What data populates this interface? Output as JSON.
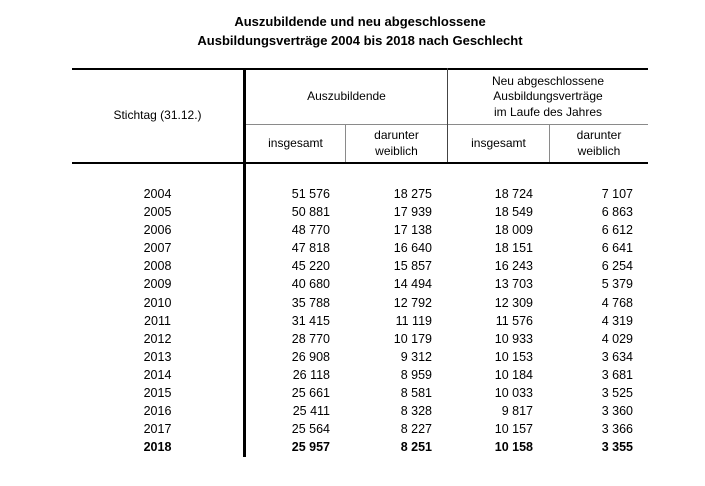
{
  "title": {
    "line1": "Auszubildende und neu abgeschlossene",
    "line2": "Ausbildungsverträge 2004 bis 2018 nach Geschlecht"
  },
  "table": {
    "corner_header": "Stichtag (31.12.)",
    "group1": {
      "label": "Auszubildende"
    },
    "group2": {
      "lines": [
        "Neu abgeschlossene",
        "Ausbildungsverträge",
        "im Laufe des Jahres"
      ]
    },
    "subheaders": [
      {
        "lines": [
          "insgesamt"
        ]
      },
      {
        "lines": [
          "darunter",
          "weiblich"
        ]
      },
      {
        "lines": [
          "insgesamt"
        ]
      },
      {
        "lines": [
          "darunter",
          "weiblich"
        ]
      }
    ],
    "rows": [
      {
        "year": "2004",
        "values": [
          "51 576",
          "18 275",
          "18 724",
          "7 107"
        ],
        "bold": false
      },
      {
        "year": "2005",
        "values": [
          "50 881",
          "17 939",
          "18 549",
          "6 863"
        ],
        "bold": false
      },
      {
        "year": "2006",
        "values": [
          "48 770",
          "17 138",
          "18 009",
          "6 612"
        ],
        "bold": false
      },
      {
        "year": "2007",
        "values": [
          "47 818",
          "16 640",
          "18 151",
          "6 641"
        ],
        "bold": false
      },
      {
        "year": "2008",
        "values": [
          "45 220",
          "15 857",
          "16 243",
          "6 254"
        ],
        "bold": false
      },
      {
        "year": "2009",
        "values": [
          "40 680",
          "14 494",
          "13 703",
          "5 379"
        ],
        "bold": false
      },
      {
        "year": "2010",
        "values": [
          "35 788",
          "12 792",
          "12 309",
          "4 768"
        ],
        "bold": false
      },
      {
        "year": "2011",
        "values": [
          "31 415",
          "11 119",
          "11 576",
          "4 319"
        ],
        "bold": false
      },
      {
        "year": "2012",
        "values": [
          "28 770",
          "10 179",
          "10 933",
          "4 029"
        ],
        "bold": false
      },
      {
        "year": "2013",
        "values": [
          "26 908",
          "9 312",
          "10 153",
          "3 634"
        ],
        "bold": false
      },
      {
        "year": "2014",
        "values": [
          "26 118",
          "8 959",
          "10 184",
          "3 681"
        ],
        "bold": false
      },
      {
        "year": "2015",
        "values": [
          "25 661",
          "8 581",
          "10 033",
          "3 525"
        ],
        "bold": false
      },
      {
        "year": "2016",
        "values": [
          "25 411",
          "8 328",
          "9 817",
          "3 360"
        ],
        "bold": false
      },
      {
        "year": "2017",
        "values": [
          "25 564",
          "8 227",
          "10 157",
          "3 366"
        ],
        "bold": false
      },
      {
        "year": "2018",
        "values": [
          "25 957",
          "8 251",
          "10 158",
          "3 355"
        ],
        "bold": true
      }
    ]
  },
  "colors": {
    "text": "#000000",
    "background": "#ffffff",
    "rule_strong": "#000000",
    "rule_light": "#8a8a8a"
  },
  "chart_data": {
    "type": "table",
    "title": "Auszubildende und neu abgeschlossene Ausbildungsverträge 2004 bis 2018 nach Geschlecht",
    "columns": [
      "Stichtag (31.12.)",
      "Auszubildende insgesamt",
      "Auszubildende darunter weiblich",
      "Neu abgeschlossene Ausbildungsverträge im Laufe des Jahres insgesamt",
      "Neu abgeschlossene Ausbildungsverträge im Laufe des Jahres darunter weiblich"
    ],
    "rows": [
      [
        2004,
        51576,
        18275,
        18724,
        7107
      ],
      [
        2005,
        50881,
        17939,
        18549,
        6863
      ],
      [
        2006,
        48770,
        17138,
        18009,
        6612
      ],
      [
        2007,
        47818,
        16640,
        18151,
        6641
      ],
      [
        2008,
        45220,
        15857,
        16243,
        6254
      ],
      [
        2009,
        40680,
        14494,
        13703,
        5379
      ],
      [
        2010,
        35788,
        12792,
        12309,
        4768
      ],
      [
        2011,
        31415,
        11119,
        11576,
        4319
      ],
      [
        2012,
        28770,
        10179,
        10933,
        4029
      ],
      [
        2013,
        26908,
        9312,
        10153,
        3634
      ],
      [
        2014,
        26118,
        8959,
        10184,
        3681
      ],
      [
        2015,
        25661,
        8581,
        10033,
        3525
      ],
      [
        2016,
        25411,
        8328,
        9817,
        3360
      ],
      [
        2017,
        25564,
        8227,
        10157,
        3366
      ],
      [
        2018,
        25957,
        8251,
        10158,
        3355
      ]
    ],
    "emphasized_row": "2018"
  }
}
